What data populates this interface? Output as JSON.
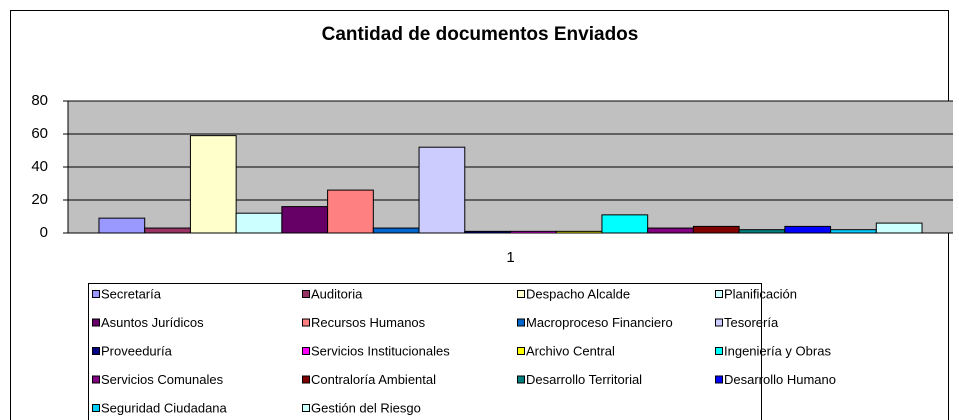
{
  "chart_data": {
    "type": "bar",
    "title": "Cantidad de documentos Enviados",
    "categories": [
      "1"
    ],
    "ylim": [
      0,
      80
    ],
    "yticks": [
      0,
      20,
      40,
      60,
      80
    ],
    "grid": true,
    "series": [
      {
        "name": "Secretaría",
        "color": "#9999FF",
        "values": [
          9
        ]
      },
      {
        "name": "Auditoria",
        "color": "#993366",
        "values": [
          3
        ]
      },
      {
        "name": "Despacho Alcalde",
        "color": "#FFFFCC",
        "values": [
          59
        ]
      },
      {
        "name": "Planificación",
        "color": "#CCFFFF",
        "values": [
          12
        ]
      },
      {
        "name": "Asuntos Jurídicos",
        "color": "#660066",
        "values": [
          16
        ]
      },
      {
        "name": "Recursos Humanos",
        "color": "#FF8080",
        "values": [
          26
        ]
      },
      {
        "name": "Macroproceso Financiero",
        "color": "#0066CC",
        "values": [
          3
        ]
      },
      {
        "name": "Tesorería",
        "color": "#CCCCFF",
        "values": [
          52
        ]
      },
      {
        "name": "Proveeduría",
        "color": "#000080",
        "values": [
          1
        ]
      },
      {
        "name": "Servicios Institucionales",
        "color": "#FF00FF",
        "values": [
          1
        ]
      },
      {
        "name": "Archivo Central",
        "color": "#FFFF00",
        "values": [
          1
        ]
      },
      {
        "name": "Ingeniería y Obras",
        "color": "#00FFFF",
        "values": [
          11
        ]
      },
      {
        "name": "Servicios Comunales",
        "color": "#800080",
        "values": [
          3
        ]
      },
      {
        "name": "Contraloría Ambiental",
        "color": "#800000",
        "values": [
          4
        ]
      },
      {
        "name": "Desarrollo Territorial",
        "color": "#008080",
        "values": [
          2
        ]
      },
      {
        "name": "Desarrollo Humano",
        "color": "#0000FF",
        "values": [
          4
        ]
      },
      {
        "name": "Seguridad Ciudadana",
        "color": "#00CCFF",
        "values": [
          2
        ]
      },
      {
        "name": "Gestión del Riesgo",
        "color": "#CCFFFF",
        "values": [
          6
        ]
      }
    ]
  }
}
